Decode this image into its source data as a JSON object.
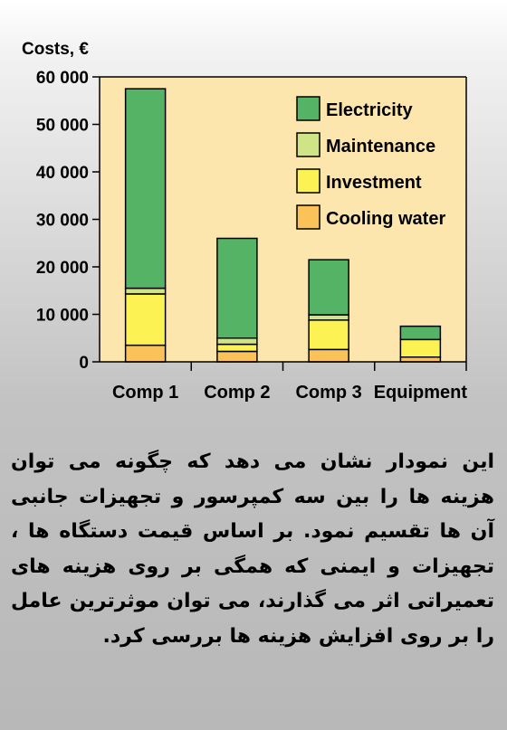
{
  "chart_data": {
    "type": "bar",
    "stacked": true,
    "ylabel": "Costs, €",
    "categories": [
      "Comp 1",
      "Comp 2",
      "Comp 3",
      "Equipment"
    ],
    "ylim": [
      0,
      60000
    ],
    "yticks": [
      0,
      10000,
      20000,
      30000,
      40000,
      50000,
      60000
    ],
    "ytick_labels": [
      "0",
      "10 000",
      "20 000",
      "30 000",
      "40 000",
      "50 000",
      "60 000"
    ],
    "series": [
      {
        "name": "Cooling water",
        "color": "#fbc25a",
        "values": [
          3500,
          2200,
          2600,
          1000
        ]
      },
      {
        "name": "Investment",
        "color": "#fdf254",
        "values": [
          10800,
          1500,
          6200,
          3700
        ]
      },
      {
        "name": "Maintenance",
        "color": "#cfe387",
        "values": [
          1200,
          1300,
          1100,
          0
        ]
      },
      {
        "name": "Electricity",
        "color": "#54b365",
        "values": [
          42000,
          21000,
          11600,
          2800
        ]
      }
    ],
    "legend_order": [
      "Electricity",
      "Maintenance",
      "Investment",
      "Cooling water"
    ],
    "legend_position": "top-right",
    "plot_background": "#fde5ae",
    "grid": false
  },
  "caption": "این نمودار نشان می دهد که چگونه می توان هزینه ها را بین سه کمپرسور و تجهیزات جانبی آن ها تقسیم نمود. بر اساس قیمت دستگاه ها ، تجهیزات و ایمنی که همگی بر روی هزینه های تعمیراتی اثر می گذارند، می توان موثرترین عامل را بر روی افزایش هزینه ها بررسی کرد."
}
